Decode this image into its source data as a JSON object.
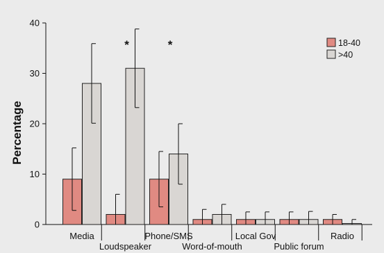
{
  "chart_data": {
    "type": "bar",
    "ylabel": "Percentage",
    "ylim": [
      0,
      40
    ],
    "yticks": [
      0,
      10,
      20,
      30,
      40
    ],
    "categories": [
      "Media",
      "Loudspeaker",
      "Phone/SMS",
      "Word-of-mouth",
      "Local Gov",
      "Public forum",
      "Radio"
    ],
    "series": [
      {
        "name": "18-40",
        "color": "#e08a82",
        "values": [
          9,
          2,
          9,
          1,
          1,
          1,
          1
        ],
        "errors": [
          6.2,
          4,
          5.5,
          2,
          1.5,
          1.5,
          1
        ]
      },
      {
        "name": ">40",
        "color": "#d9d6d3",
        "values": [
          28,
          31,
          14,
          2,
          1,
          1,
          0.2
        ],
        "errors": [
          7.9,
          7.8,
          6,
          2,
          1.5,
          1.6,
          0.8
        ]
      }
    ],
    "significance": [
      {
        "category": "Loudspeaker",
        "mark": "*"
      },
      {
        "category": "Phone/SMS",
        "mark": "*"
      }
    ],
    "legend_position": "top-right",
    "grid": false
  }
}
